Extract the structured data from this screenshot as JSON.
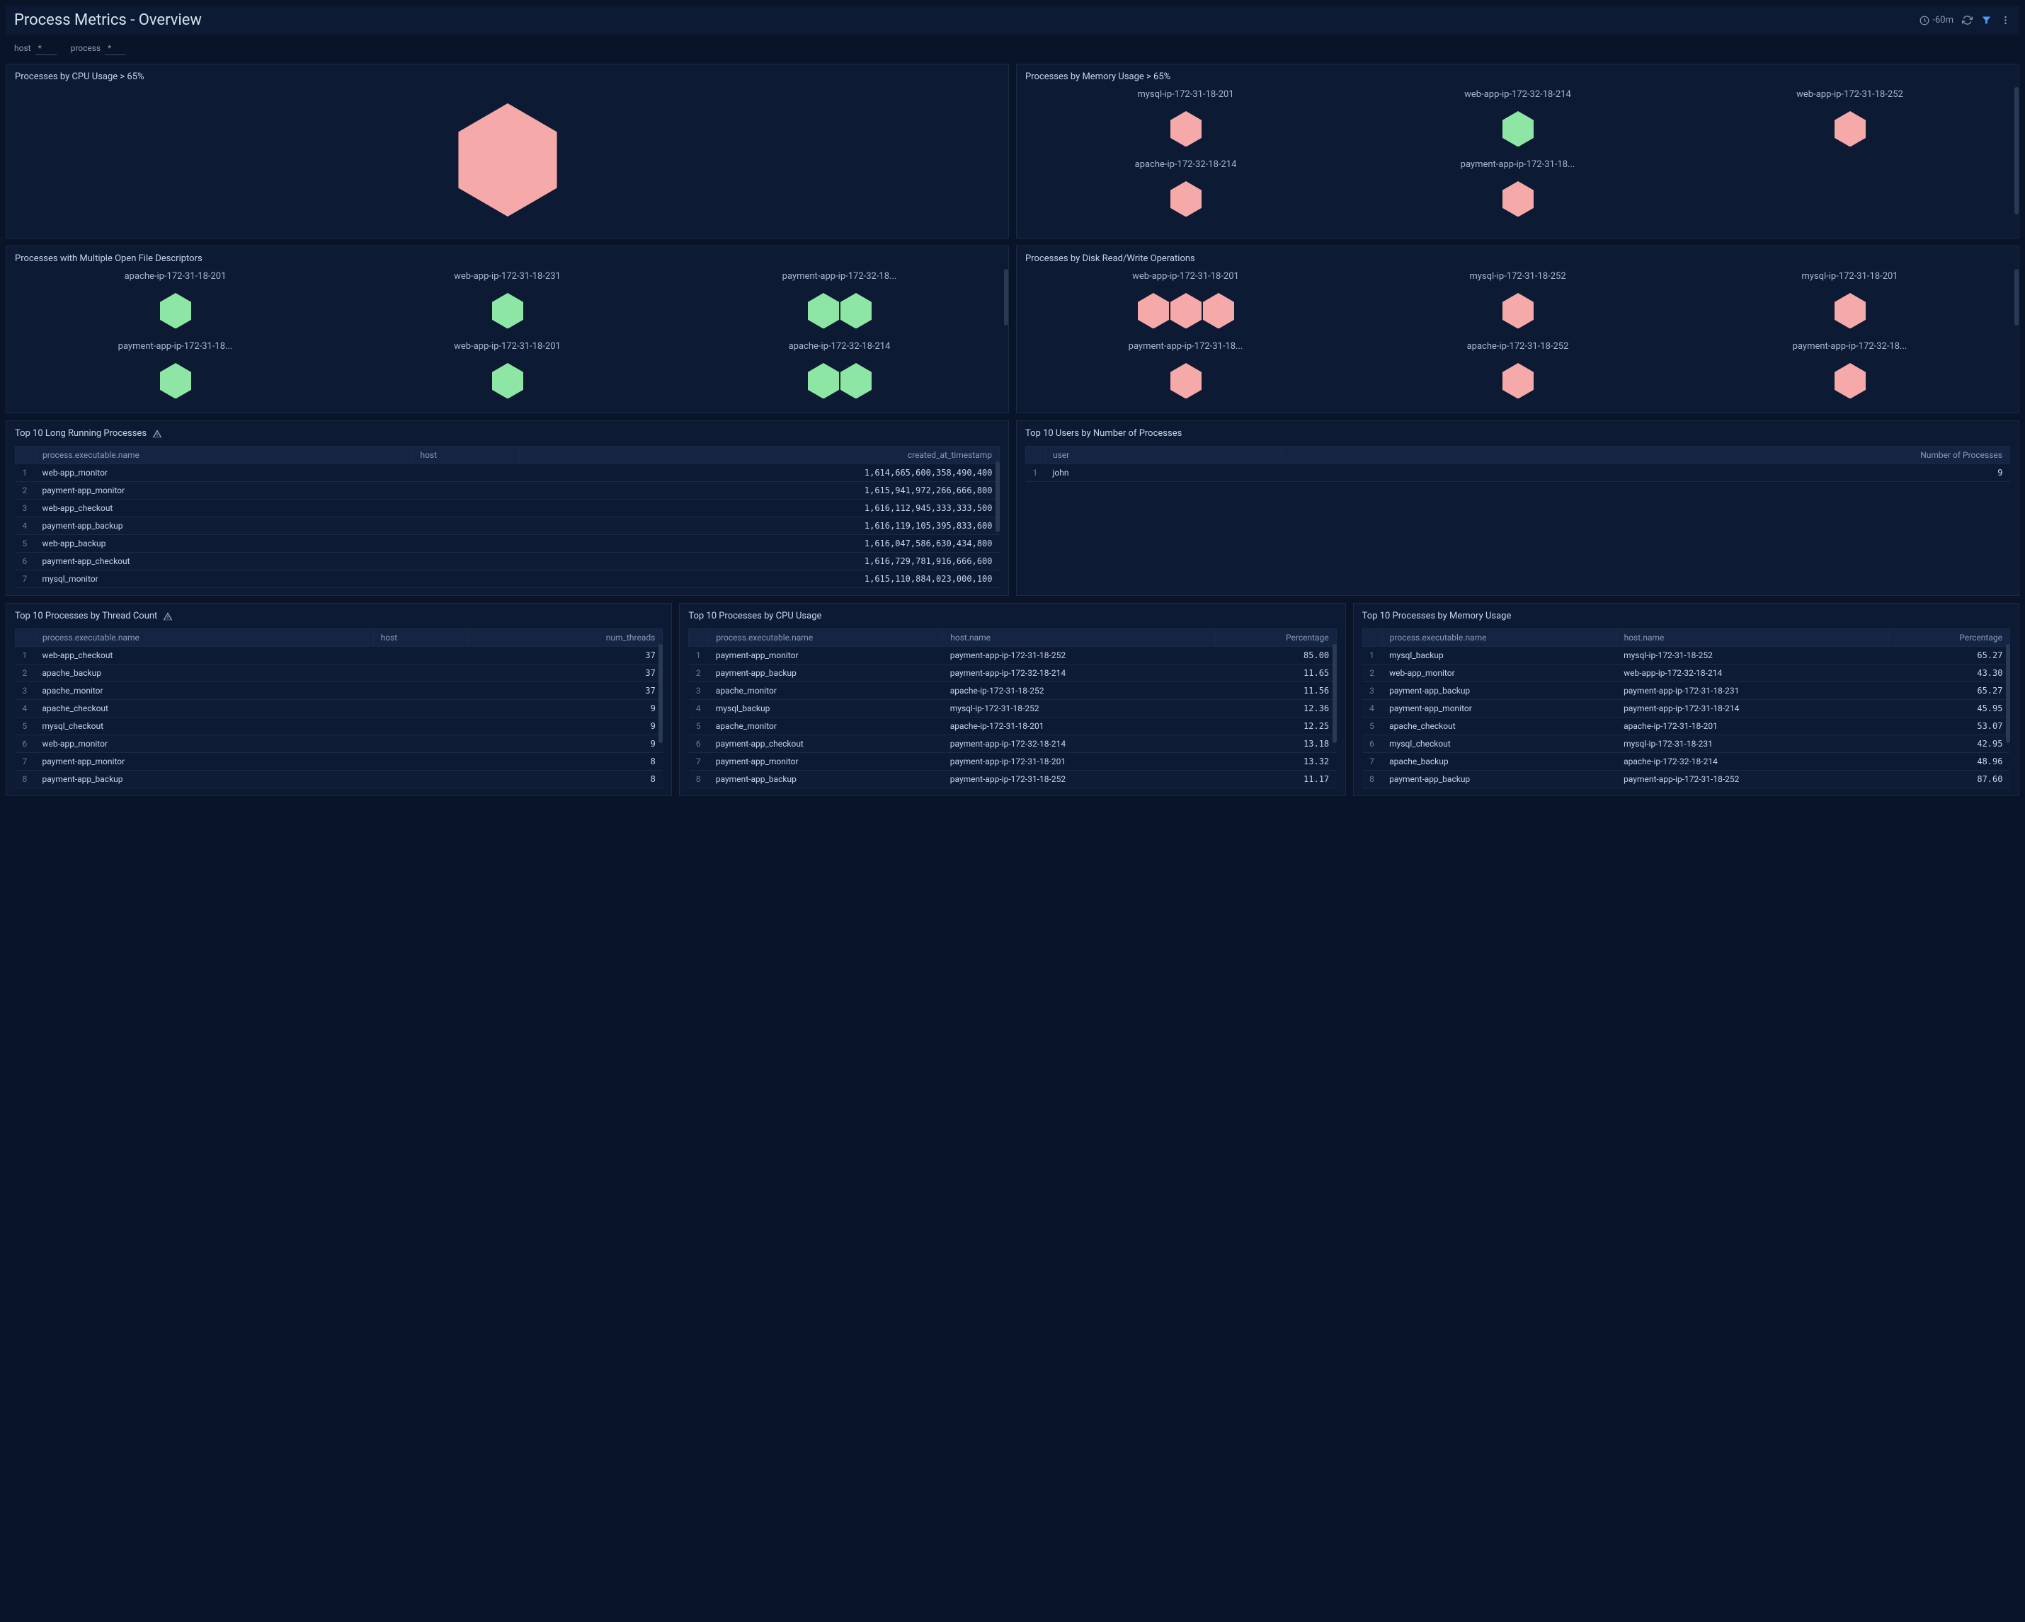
{
  "header": {
    "title": "Process Metrics - Overview",
    "time_range": "-60m"
  },
  "filters": [
    {
      "label": "host",
      "value": "*"
    },
    {
      "label": "process",
      "value": "*"
    }
  ],
  "colors": {
    "hex_red": "#f5a9a9",
    "hex_green": "#8ee6a5",
    "panel_bg": "#0d1a33",
    "page_bg": "#0a1428"
  },
  "panels": {
    "cpu_over_65": {
      "title": "Processes by CPU Usage > 65%",
      "large_hex_color": "#f5a9a9"
    },
    "mem_over_65": {
      "title": "Processes by Memory Usage > 65%",
      "cells": [
        {
          "label": "mysql-ip-172-31-18-201",
          "hexes": [
            {
              "color": "#f5a9a9"
            }
          ]
        },
        {
          "label": "web-app-ip-172-32-18-214",
          "hexes": [
            {
              "color": "#8ee6a5"
            }
          ]
        },
        {
          "label": "web-app-ip-172-31-18-252",
          "hexes": [
            {
              "color": "#f5a9a9"
            }
          ]
        },
        {
          "label": "apache-ip-172-32-18-214",
          "hexes": [
            {
              "color": "#f5a9a9"
            }
          ]
        },
        {
          "label": "payment-app-ip-172-31-18...",
          "hexes": [
            {
              "color": "#f5a9a9"
            }
          ]
        },
        null
      ]
    },
    "open_fd": {
      "title": "Processes with Multiple Open File Descriptors",
      "cells": [
        {
          "label": "apache-ip-172-31-18-201",
          "hexes": [
            {
              "color": "#8ee6a5"
            }
          ]
        },
        {
          "label": "web-app-ip-172-31-18-231",
          "hexes": [
            {
              "color": "#8ee6a5"
            }
          ]
        },
        {
          "label": "payment-app-ip-172-32-18...",
          "hexes": [
            {
              "color": "#8ee6a5"
            },
            {
              "color": "#8ee6a5"
            }
          ]
        },
        {
          "label": "payment-app-ip-172-31-18...",
          "hexes": [
            {
              "color": "#8ee6a5"
            }
          ]
        },
        {
          "label": "web-app-ip-172-31-18-201",
          "hexes": [
            {
              "color": "#8ee6a5"
            }
          ]
        },
        {
          "label": "apache-ip-172-32-18-214",
          "hexes": [
            {
              "color": "#8ee6a5"
            },
            {
              "color": "#8ee6a5"
            }
          ]
        }
      ]
    },
    "disk_rw": {
      "title": "Processes by Disk Read/Write Operations",
      "cells": [
        {
          "label": "web-app-ip-172-31-18-201",
          "hexes": [
            {
              "color": "#f5a9a9"
            },
            {
              "color": "#f5a9a9"
            },
            {
              "color": "#f5a9a9"
            }
          ]
        },
        {
          "label": "mysql-ip-172-31-18-252",
          "hexes": [
            {
              "color": "#f5a9a9"
            }
          ]
        },
        {
          "label": "mysql-ip-172-31-18-201",
          "hexes": [
            {
              "color": "#f5a9a9"
            }
          ]
        },
        {
          "label": "payment-app-ip-172-31-18...",
          "hexes": [
            {
              "color": "#f5a9a9"
            }
          ]
        },
        {
          "label": "apache-ip-172-31-18-252",
          "hexes": [
            {
              "color": "#f5a9a9"
            }
          ]
        },
        {
          "label": "payment-app-ip-172-32-18...",
          "hexes": [
            {
              "color": "#f5a9a9"
            }
          ]
        }
      ]
    },
    "long_running": {
      "title": "Top 10 Long Running Processes",
      "warn": true,
      "columns": [
        "process.executable.name",
        "host",
        "created_at_timestamp"
      ],
      "col_align": [
        "left",
        "left",
        "right"
      ],
      "rows": [
        [
          "web-app_monitor",
          "",
          "1,614,665,600,358,490,400"
        ],
        [
          "payment-app_monitor",
          "",
          "1,615,941,972,266,666,800"
        ],
        [
          "web-app_checkout",
          "",
          "1,616,112,945,333,333,500"
        ],
        [
          "payment-app_backup",
          "",
          "1,616,119,105,395,833,600"
        ],
        [
          "web-app_backup",
          "",
          "1,616,047,586,630,434,800"
        ],
        [
          "payment-app_checkout",
          "",
          "1,616,729,781,916,666,600"
        ],
        [
          "mysql_monitor",
          "",
          "1,615,110,884,023,000,100"
        ]
      ]
    },
    "users_by_proc": {
      "title": "Top 10 Users by Number of Processes",
      "columns": [
        "user",
        "Number of Processes"
      ],
      "col_align": [
        "left",
        "right"
      ],
      "rows": [
        [
          "john",
          "9"
        ]
      ]
    },
    "thread_count": {
      "title": "Top 10 Processes by Thread Count",
      "warn": true,
      "columns": [
        "process.executable.name",
        "host",
        "num_threads"
      ],
      "col_align": [
        "left",
        "left",
        "right"
      ],
      "rows": [
        [
          "web-app_checkout",
          "",
          "37"
        ],
        [
          "apache_backup",
          "",
          "37"
        ],
        [
          "apache_monitor",
          "",
          "37"
        ],
        [
          "apache_checkout",
          "",
          "9"
        ],
        [
          "mysql_checkout",
          "",
          "9"
        ],
        [
          "web-app_monitor",
          "",
          "9"
        ],
        [
          "payment-app_monitor",
          "",
          "8"
        ],
        [
          "payment-app_backup",
          "",
          "8"
        ]
      ]
    },
    "cpu_usage": {
      "title": "Top 10 Processes by CPU Usage",
      "columns": [
        "process.executable.name",
        "host.name",
        "Percentage"
      ],
      "col_align": [
        "left",
        "left",
        "right"
      ],
      "rows": [
        [
          "payment-app_monitor",
          "payment-app-ip-172-31-18-252",
          "85.00"
        ],
        [
          "payment-app_backup",
          "payment-app-ip-172-32-18-214",
          "11.65"
        ],
        [
          "apache_monitor",
          "apache-ip-172-31-18-252",
          "11.56"
        ],
        [
          "mysql_backup",
          "mysql-ip-172-31-18-252",
          "12.36"
        ],
        [
          "apache_monitor",
          "apache-ip-172-31-18-201",
          "12.25"
        ],
        [
          "payment-app_checkout",
          "payment-app-ip-172-32-18-214",
          "13.18"
        ],
        [
          "payment-app_monitor",
          "payment-app-ip-172-31-18-201",
          "13.32"
        ],
        [
          "payment-app_backup",
          "payment-app-ip-172-31-18-252",
          "11.17"
        ]
      ]
    },
    "mem_usage": {
      "title": "Top 10 Processes by Memory Usage",
      "columns": [
        "process.executable.name",
        "host.name",
        "Percentage"
      ],
      "col_align": [
        "left",
        "left",
        "right"
      ],
      "rows": [
        [
          "mysql_backup",
          "mysql-ip-172-31-18-252",
          "65.27"
        ],
        [
          "web-app_monitor",
          "web-app-ip-172-32-18-214",
          "43.30"
        ],
        [
          "payment-app_backup",
          "payment-app-ip-172-31-18-231",
          "65.27"
        ],
        [
          "payment-app_monitor",
          "payment-app-ip-172-31-18-214",
          "45.95"
        ],
        [
          "apache_checkout",
          "apache-ip-172-31-18-201",
          "53.07"
        ],
        [
          "mysql_checkout",
          "mysql-ip-172-31-18-231",
          "42.95"
        ],
        [
          "apache_backup",
          "apache-ip-172-32-18-214",
          "48.96"
        ],
        [
          "payment-app_backup",
          "payment-app-ip-172-31-18-252",
          "87.60"
        ]
      ]
    }
  }
}
